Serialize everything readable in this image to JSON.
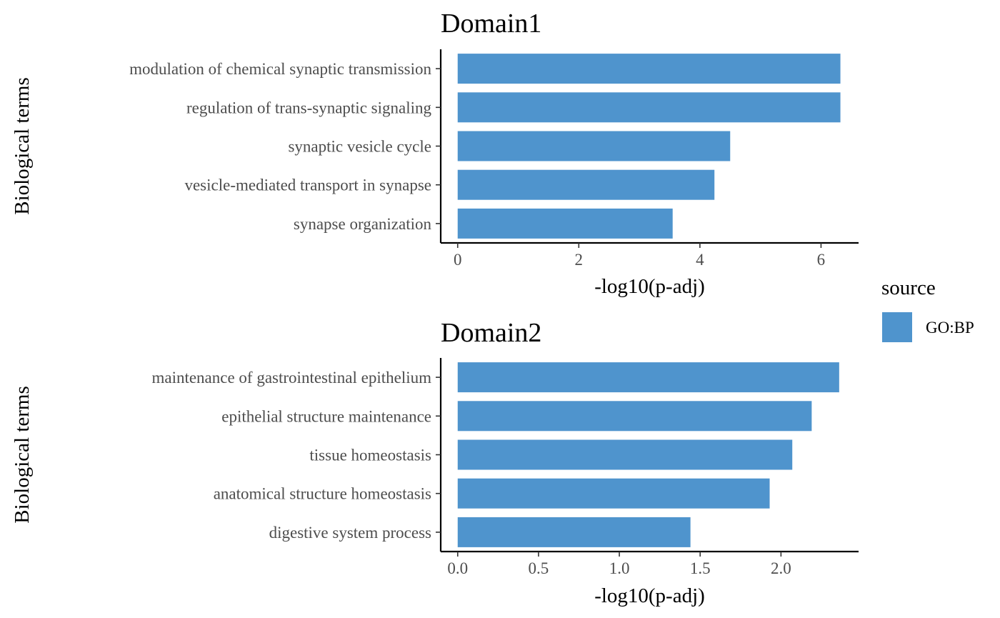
{
  "chart_data": [
    {
      "type": "bar",
      "orientation": "horizontal",
      "title": "Domain1",
      "xlabel": "-log10(p-adj)",
      "ylabel": "Biological terms",
      "categories": [
        "modulation of chemical synaptic transmission",
        "regulation of trans-synaptic signaling",
        "synaptic vesicle cycle",
        "vesicle-mediated transport in synapse",
        "synapse organization"
      ],
      "series": [
        {
          "name": "GO:BP",
          "values": [
            6.32,
            6.32,
            4.5,
            4.24,
            3.55
          ]
        }
      ],
      "xticks": [
        0,
        2,
        4,
        6
      ],
      "xtick_labels": [
        "0",
        "2",
        "4",
        "6"
      ],
      "xlim": [
        -0.28,
        6.62
      ],
      "grid": false
    },
    {
      "type": "bar",
      "orientation": "horizontal",
      "title": "Domain2",
      "xlabel": "-log10(p-adj)",
      "ylabel": "Biological terms",
      "categories": [
        "maintenance of gastrointestinal epithelium",
        "epithelial structure maintenance",
        "tissue homeostasis",
        "anatomical structure homeostasis",
        "digestive system process"
      ],
      "series": [
        {
          "name": "GO:BP",
          "values": [
            2.36,
            2.19,
            2.07,
            1.93,
            1.44
          ]
        }
      ],
      "xticks": [
        0,
        0.5,
        1,
        1.5,
        2
      ],
      "xtick_labels": [
        "0.0",
        "0.5",
        "1.0",
        "1.5",
        "2.0"
      ],
      "xlim": [
        -0.105,
        2.48
      ],
      "grid": false
    }
  ],
  "legend": {
    "title": "source",
    "placement": "right",
    "items": [
      {
        "label": "GO:BP",
        "color": "#4F94CD"
      }
    ]
  },
  "colors": {
    "bar": "#4F94CD"
  }
}
